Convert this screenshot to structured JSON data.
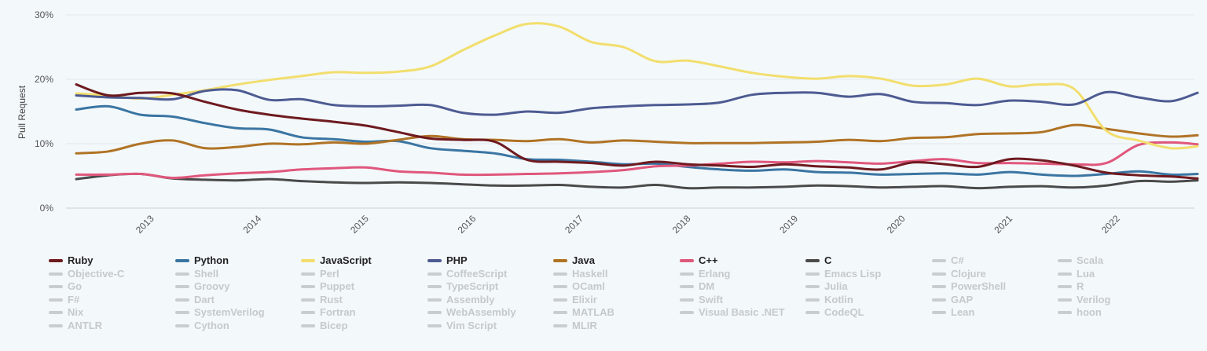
{
  "chart_data": {
    "type": "line",
    "title": "",
    "xlabel": "",
    "ylabel": "Pull Request",
    "y_unit": "%",
    "ylim": [
      0,
      30
    ],
    "y_ticks": [
      "0%",
      "10%",
      "20%",
      "30%"
    ],
    "xlim": [
      2012.3,
      2022.75
    ],
    "x_ticks": [
      "2013",
      "2014",
      "2015",
      "2016",
      "2017",
      "2018",
      "2019",
      "2020",
      "2021",
      "2022"
    ],
    "grid": "horizontal",
    "legend_position": "bottom",
    "x": [
      2012.3,
      2012.6,
      2012.9,
      2013.2,
      2013.5,
      2013.8,
      2014.1,
      2014.4,
      2014.7,
      2015.0,
      2015.3,
      2015.6,
      2015.9,
      2016.2,
      2016.5,
      2016.8,
      2017.1,
      2017.4,
      2017.7,
      2018.0,
      2018.3,
      2018.6,
      2018.9,
      2019.2,
      2019.5,
      2019.8,
      2020.1,
      2020.4,
      2020.7,
      2021.0,
      2021.3,
      2021.6,
      2021.9,
      2022.2,
      2022.5,
      2022.75
    ],
    "series": [
      {
        "name": "Ruby",
        "color": "#6e1a1f",
        "values": [
          19.2,
          17.5,
          17.9,
          17.8,
          16.5,
          15.3,
          14.5,
          13.9,
          13.4,
          12.8,
          11.8,
          10.8,
          10.6,
          10.3,
          7.5,
          7.2,
          7.0,
          6.6,
          7.2,
          6.8,
          6.6,
          6.4,
          6.8,
          6.5,
          6.3,
          6.0,
          7.1,
          6.8,
          6.4,
          7.6,
          7.4,
          6.6,
          5.5,
          5.1,
          4.9,
          4.6
        ]
      },
      {
        "name": "Python",
        "color": "#3a75a2",
        "values": [
          15.3,
          15.8,
          14.5,
          14.2,
          13.2,
          12.4,
          12.2,
          11.0,
          10.7,
          10.3,
          10.4,
          9.3,
          8.9,
          8.5,
          7.6,
          7.5,
          7.2,
          6.8,
          6.9,
          6.4,
          6.0,
          5.8,
          6.0,
          5.6,
          5.5,
          5.2,
          5.3,
          5.4,
          5.2,
          5.6,
          5.2,
          5.0,
          5.3,
          5.7,
          5.2,
          5.3
        ]
      },
      {
        "name": "JavaScript",
        "color": "#f2de6d",
        "values": [
          17.8,
          17.5,
          17.0,
          17.6,
          18.3,
          19.2,
          19.9,
          20.5,
          21.1,
          21.0,
          21.2,
          22.0,
          24.5,
          26.8,
          28.6,
          28.2,
          25.8,
          25.0,
          22.8,
          22.9,
          22.0,
          21.0,
          20.4,
          20.1,
          20.5,
          20.1,
          19.0,
          19.2,
          20.1,
          18.9,
          19.2,
          18.5,
          12.0,
          10.5,
          9.3,
          9.6
        ]
      },
      {
        "name": "PHP",
        "color": "#4d5b92",
        "values": [
          17.5,
          17.2,
          17.1,
          16.9,
          18.2,
          18.3,
          16.8,
          16.9,
          16.0,
          15.8,
          15.9,
          16.0,
          14.8,
          14.5,
          15.0,
          14.8,
          15.5,
          15.8,
          16.0,
          16.1,
          16.4,
          17.6,
          17.9,
          17.9,
          17.3,
          17.7,
          16.5,
          16.3,
          16.0,
          16.7,
          16.5,
          16.1,
          18.0,
          17.2,
          16.6,
          17.9
        ]
      },
      {
        "name": "Java",
        "color": "#b07325",
        "values": [
          8.5,
          8.8,
          10.0,
          10.5,
          9.3,
          9.5,
          10.0,
          9.9,
          10.2,
          10.0,
          10.6,
          11.2,
          10.7,
          10.6,
          10.4,
          10.7,
          10.2,
          10.5,
          10.3,
          10.1,
          10.1,
          10.1,
          10.2,
          10.3,
          10.6,
          10.4,
          10.9,
          11.0,
          11.5,
          11.6,
          11.8,
          12.9,
          12.3,
          11.6,
          11.1,
          11.3
        ]
      },
      {
        "name": "C++",
        "color": "#e0577c",
        "values": [
          5.2,
          5.2,
          5.3,
          4.7,
          5.1,
          5.4,
          5.6,
          6.0,
          6.2,
          6.3,
          5.7,
          5.5,
          5.2,
          5.2,
          5.3,
          5.4,
          5.6,
          5.9,
          6.5,
          6.6,
          6.9,
          7.2,
          7.1,
          7.3,
          7.1,
          6.9,
          7.3,
          7.6,
          7.0,
          7.0,
          6.9,
          6.8,
          7.0,
          9.8,
          10.2,
          9.9
        ]
      },
      {
        "name": "C",
        "color": "#4a4a4a",
        "values": [
          4.5,
          5.1,
          5.3,
          4.6,
          4.4,
          4.3,
          4.5,
          4.2,
          4.0,
          3.9,
          4.0,
          3.9,
          3.7,
          3.5,
          3.5,
          3.6,
          3.3,
          3.2,
          3.6,
          3.1,
          3.2,
          3.2,
          3.3,
          3.5,
          3.4,
          3.2,
          3.3,
          3.4,
          3.1,
          3.3,
          3.4,
          3.2,
          3.5,
          4.2,
          4.1,
          4.3
        ]
      }
    ],
    "legend": [
      {
        "label": "Ruby",
        "active": true,
        "color": "#6e1a1f"
      },
      {
        "label": "Python",
        "active": true,
        "color": "#3a75a2"
      },
      {
        "label": "JavaScript",
        "active": true,
        "color": "#f2de6d"
      },
      {
        "label": "PHP",
        "active": true,
        "color": "#4d5b92"
      },
      {
        "label": "Java",
        "active": true,
        "color": "#b07325"
      },
      {
        "label": "C++",
        "active": true,
        "color": "#e0577c"
      },
      {
        "label": "C",
        "active": true,
        "color": "#4a4a4a"
      },
      {
        "label": "C#",
        "active": false
      },
      {
        "label": "Scala",
        "active": false
      },
      {
        "label": "Objective-C",
        "active": false
      },
      {
        "label": "Shell",
        "active": false
      },
      {
        "label": "Perl",
        "active": false
      },
      {
        "label": "CoffeeScript",
        "active": false
      },
      {
        "label": "Haskell",
        "active": false
      },
      {
        "label": "Erlang",
        "active": false
      },
      {
        "label": "Emacs Lisp",
        "active": false
      },
      {
        "label": "Clojure",
        "active": false
      },
      {
        "label": "Lua",
        "active": false
      },
      {
        "label": "Go",
        "active": false
      },
      {
        "label": "Groovy",
        "active": false
      },
      {
        "label": "Puppet",
        "active": false
      },
      {
        "label": "TypeScript",
        "active": false
      },
      {
        "label": "OCaml",
        "active": false
      },
      {
        "label": "DM",
        "active": false
      },
      {
        "label": "Julia",
        "active": false
      },
      {
        "label": "PowerShell",
        "active": false
      },
      {
        "label": "R",
        "active": false
      },
      {
        "label": "F#",
        "active": false
      },
      {
        "label": "Dart",
        "active": false
      },
      {
        "label": "Rust",
        "active": false
      },
      {
        "label": "Assembly",
        "active": false
      },
      {
        "label": "Elixir",
        "active": false
      },
      {
        "label": "Swift",
        "active": false
      },
      {
        "label": "Kotlin",
        "active": false
      },
      {
        "label": "GAP",
        "active": false
      },
      {
        "label": "Verilog",
        "active": false
      },
      {
        "label": "Nix",
        "active": false
      },
      {
        "label": "SystemVerilog",
        "active": false
      },
      {
        "label": "Fortran",
        "active": false
      },
      {
        "label": "WebAssembly",
        "active": false
      },
      {
        "label": "MATLAB",
        "active": false
      },
      {
        "label": "Visual Basic .NET",
        "active": false
      },
      {
        "label": "CodeQL",
        "active": false
      },
      {
        "label": "Lean",
        "active": false
      },
      {
        "label": "hoon",
        "active": false
      },
      {
        "label": "ANTLR",
        "active": false
      },
      {
        "label": "Cython",
        "active": false
      },
      {
        "label": "Bicep",
        "active": false
      },
      {
        "label": "Vim Script",
        "active": false
      },
      {
        "label": "MLIR",
        "active": false
      }
    ],
    "inactive_color": "#c9cdd1"
  }
}
